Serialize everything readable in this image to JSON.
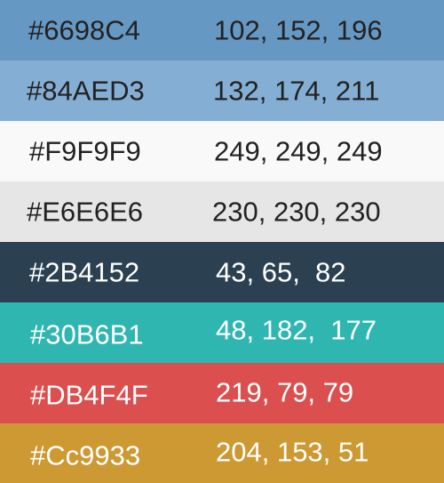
{
  "swatches": [
    {
      "hex_label": "#6698C4",
      "rgb_label": "102, 152, 196",
      "color": "#6698C4",
      "text_color": "#222222"
    },
    {
      "hex_label": "#84AED3",
      "rgb_label": "132, 174, 211",
      "color": "#84AED3",
      "text_color": "#222222"
    },
    {
      "hex_label": "#F9F9F9",
      "rgb_label": "249, 249, 249",
      "color": "#F9F9F9",
      "text_color": "#222222"
    },
    {
      "hex_label": "#E6E6E6",
      "rgb_label": "230, 230, 230",
      "color": "#E6E6E6",
      "text_color": "#222222"
    },
    {
      "hex_label": "#2B4152",
      "rgb_label": "43, 65,  82",
      "color": "#2B4152",
      "text_color": "#FFFFFF"
    },
    {
      "hex_label": "#30B6B1",
      "rgb_label": "48, 182,  177",
      "color": "#30B6B1",
      "text_color": "#FFFFFF"
    },
    {
      "hex_label": "#DB4F4F",
      "rgb_label": "219, 79, 79",
      "color": "#DB4F4F",
      "text_color": "#FFFFFF"
    },
    {
      "hex_label": "#Cc9933",
      "rgb_label": "204, 153, 51",
      "color": "#CC9933",
      "text_color": "#FFFFFF"
    }
  ]
}
